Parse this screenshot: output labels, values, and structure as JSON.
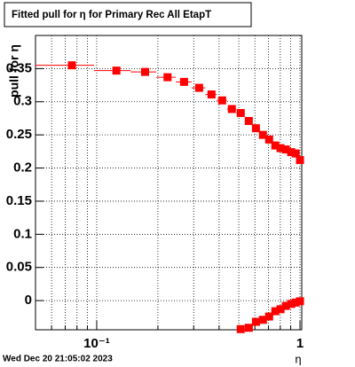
{
  "chart_data": {
    "type": "scatter",
    "title": "Fitted pull for η for Primary Rec All EtapT",
    "y_label": "pull for η",
    "x_label": "η",
    "footer": "Wed Dec 20 21:05:02 2023",
    "log_x": true,
    "grid": true,
    "xlim": [
      0.05,
      1.02
    ],
    "ylim": [
      -0.044,
      0.4
    ],
    "xticks": [
      {
        "value": 0.1,
        "label": "10⁻¹"
      },
      1
    ],
    "yticks": [
      0,
      0.05,
      0.1,
      0.15,
      0.2,
      0.25,
      0.3,
      0.35
    ],
    "series": [
      {
        "color": "#ff0000",
        "x": [
          0.0755,
          0.125,
          0.173,
          0.223,
          0.269,
          0.319,
          0.367,
          0.414,
          0.462,
          0.511,
          0.56,
          0.607,
          0.657,
          0.705,
          0.756,
          0.802,
          0.852,
          0.905,
          0.952,
          1.0
        ],
        "values": [
          0.355,
          0.347,
          0.345,
          0.337,
          0.33,
          0.321,
          0.311,
          0.302,
          0.289,
          0.283,
          0.271,
          0.26,
          0.25,
          0.243,
          0.234,
          0.23,
          0.228,
          0.224,
          0.222,
          0.212
        ]
      },
      {
        "color": "#ff0000",
        "x": [
          0.511,
          0.56,
          0.607,
          0.657,
          0.705,
          0.756,
          0.802,
          0.852,
          0.905,
          0.952,
          1.0
        ],
        "values": [
          -0.043,
          -0.041,
          -0.032,
          -0.029,
          -0.024,
          -0.016,
          -0.013,
          -0.008,
          -0.005,
          -0.003,
          -0.001
        ]
      }
    ]
  }
}
